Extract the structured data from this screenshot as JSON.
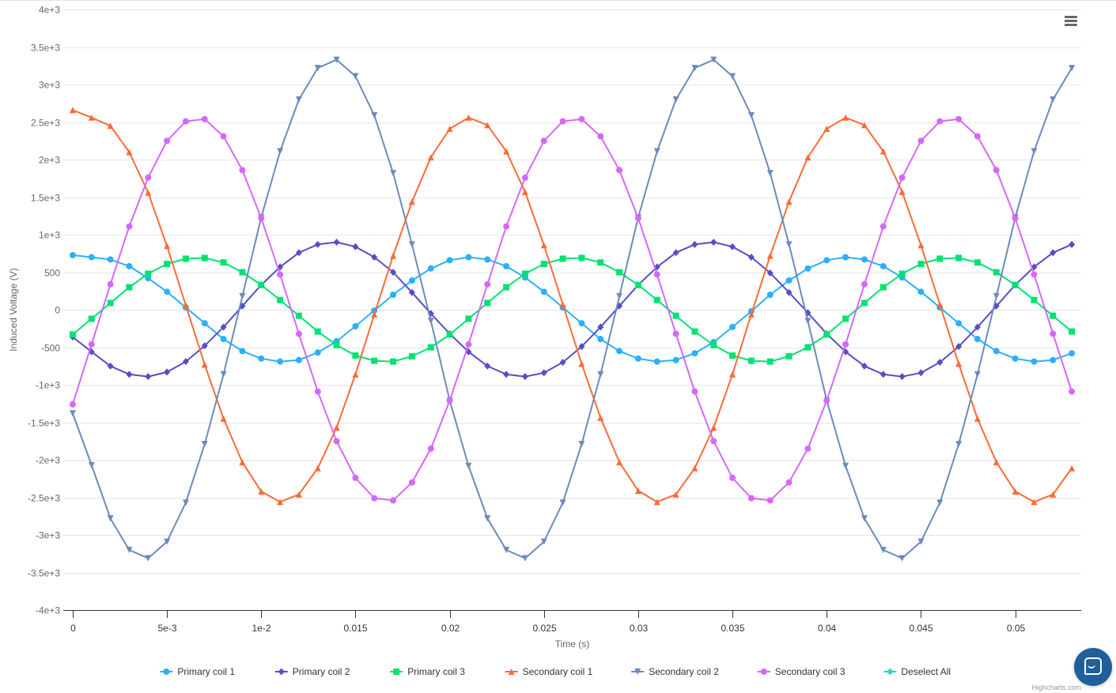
{
  "menu": {
    "icon": "hamburger-menu-icon"
  },
  "help": {
    "icon": "chat-bubble-icon"
  },
  "credits": "Highcharts.com",
  "legend_extra": {
    "label": "Deselect All",
    "color": "#2ad2c9",
    "symbol": "diamond"
  },
  "colors": {
    "grid": "#e6e6e6",
    "axis": "#333333",
    "tick_label": "#666666",
    "axis_title": "#666666",
    "legend_text": "#333333"
  },
  "chart_data": {
    "type": "line",
    "xlabel": "Time (s)",
    "ylabel": "Induced Voltage (V)",
    "xlim": [
      -0.0005,
      0.0535
    ],
    "ylim": [
      -4000,
      4000
    ],
    "x_ticks": [
      0,
      0.005,
      0.01,
      0.015,
      0.02,
      0.025,
      0.03,
      0.035,
      0.04,
      0.045,
      0.05
    ],
    "x_tick_labels": [
      "0",
      "5e-3",
      "1e-2",
      "0.015",
      "0.02",
      "0.025",
      "0.03",
      "0.035",
      "0.04",
      "0.045",
      "0.05"
    ],
    "y_ticks": [
      -4000,
      -3500,
      -3000,
      -2500,
      -2000,
      -1500,
      -1000,
      -500,
      0,
      500,
      1000,
      1500,
      2000,
      2500,
      3000,
      3500,
      4000
    ],
    "y_tick_labels": [
      "-4e+3",
      "-3.5e+3",
      "-3e+3",
      "-2.5e+3",
      "-2e+3",
      "-1.5e+3",
      "-1e+3",
      "-500",
      "0",
      "500",
      "1e+3",
      "1.5e+3",
      "2e+3",
      "2.5e+3",
      "3e+3",
      "3.5e+3",
      "4e+3"
    ],
    "grid": true,
    "legend": "bottom-center",
    "x_step": 0.001,
    "x_count": 54,
    "series": [
      {
        "name": "Primary coil 1",
        "color": "#2caffe",
        "symbol": "circle",
        "values": [
          727,
          700,
          670,
          580,
          420,
          240,
          30,
          -180,
          -390,
          -550,
          -650,
          -690,
          -670,
          -570,
          -420,
          -220,
          -10,
          200,
          390,
          550,
          660,
          700,
          670,
          580,
          430,
          240,
          30,
          -180,
          -390,
          -550,
          -650,
          -690,
          -670,
          -580,
          -430,
          -230,
          -20,
          200,
          390,
          550,
          660,
          700,
          670,
          580,
          430,
          240,
          30,
          -180,
          -390,
          -550,
          -650,
          -690,
          -670,
          -580
        ]
      },
      {
        "name": "Primary coil 2",
        "color": "#544fc5",
        "symbol": "diamond",
        "values": [
          -363,
          -560,
          -750,
          -860,
          -890,
          -830,
          -690,
          -480,
          -230,
          50,
          330,
          570,
          760,
          870,
          900,
          840,
          700,
          500,
          230,
          -50,
          -320,
          -560,
          -750,
          -860,
          -890,
          -840,
          -700,
          -490,
          -230,
          50,
          330,
          570,
          760,
          870,
          900,
          840,
          700,
          490,
          230,
          -40,
          -320,
          -560,
          -750,
          -860,
          -890,
          -840,
          -700,
          -490,
          -230,
          50,
          330,
          570,
          760,
          870
        ]
      },
      {
        "name": "Primary coil 3",
        "color": "#00e272",
        "symbol": "square",
        "values": [
          -330,
          -120,
          90,
          300,
          480,
          610,
          680,
          690,
          630,
          500,
          330,
          130,
          -80,
          -290,
          -470,
          -610,
          -680,
          -690,
          -620,
          -500,
          -330,
          -120,
          90,
          300,
          480,
          610,
          680,
          690,
          630,
          500,
          330,
          130,
          -80,
          -290,
          -470,
          -610,
          -680,
          -690,
          -620,
          -500,
          -330,
          -120,
          90,
          300,
          480,
          610,
          680,
          690,
          630,
          500,
          330,
          130,
          -80,
          -290
        ]
      },
      {
        "name": "Secondary coil 1",
        "color": "#fe6a35",
        "symbol": "triangle",
        "values": [
          2660,
          2560,
          2450,
          2100,
          1560,
          850,
          60,
          -730,
          -1450,
          -2030,
          -2420,
          -2560,
          -2460,
          -2110,
          -1570,
          -860,
          -60,
          720,
          1440,
          2030,
          2410,
          2560,
          2460,
          2110,
          1570,
          860,
          70,
          -720,
          -1440,
          -2030,
          -2410,
          -2560,
          -2460,
          -2110,
          -1570,
          -860,
          -60,
          720,
          1440,
          2030,
          2410,
          2560,
          2460,
          2110,
          1570,
          860,
          70,
          -720,
          -1450,
          -2030,
          -2420,
          -2560,
          -2460,
          -2110
        ]
      },
      {
        "name": "Secondary coil 2",
        "color": "#6b8abc",
        "symbol": "triangle-down",
        "values": [
          -1380,
          -2070,
          -2780,
          -3200,
          -3310,
          -3090,
          -2570,
          -1790,
          -860,
          180,
          1230,
          2110,
          2800,
          3220,
          3330,
          3110,
          2590,
          1820,
          870,
          -150,
          -1210,
          -2080,
          -2780,
          -3200,
          -3310,
          -3090,
          -2570,
          -1790,
          -860,
          180,
          1230,
          2110,
          2800,
          3220,
          3330,
          3110,
          2590,
          1820,
          870,
          -150,
          -1210,
          -2080,
          -2780,
          -3200,
          -3310,
          -3090,
          -2570,
          -1790,
          -860,
          180,
          1230,
          2110,
          2800,
          3220
        ]
      },
      {
        "name": "Secondary coil 3",
        "color": "#d568fb",
        "symbol": "circle",
        "values": [
          -1260,
          -460,
          340,
          1110,
          1760,
          2250,
          2510,
          2540,
          2310,
          1860,
          1220,
          470,
          -320,
          -1090,
          -1750,
          -2240,
          -2510,
          -2540,
          -2300,
          -1850,
          -1210,
          -460,
          340,
          1110,
          1760,
          2250,
          2510,
          2540,
          2310,
          1860,
          1220,
          470,
          -320,
          -1090,
          -1750,
          -2240,
          -2510,
          -2540,
          -2300,
          -1850,
          -1210,
          -460,
          340,
          1110,
          1760,
          2250,
          2510,
          2540,
          2310,
          1860,
          1220,
          470,
          -320,
          -1090
        ]
      }
    ]
  }
}
